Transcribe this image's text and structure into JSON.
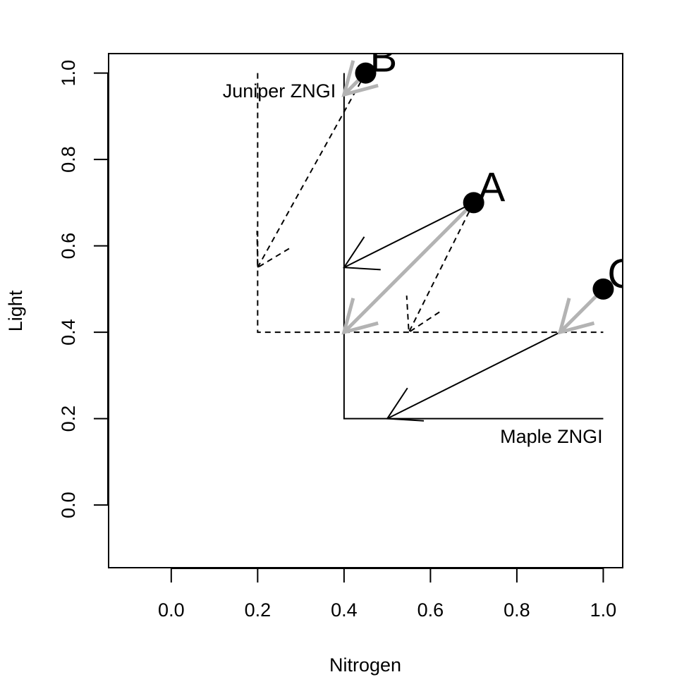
{
  "chart_data": {
    "type": "scatter",
    "xlabel": "Nitrogen",
    "ylabel": "Light",
    "xlim": [
      -0.145,
      1.045
    ],
    "ylim": [
      -0.145,
      1.045
    ],
    "grid": false,
    "x_ticks": [
      {
        "value": 0.0,
        "label": "0.0"
      },
      {
        "value": 0.2,
        "label": "0.2"
      },
      {
        "value": 0.4,
        "label": "0.4"
      },
      {
        "value": 0.6,
        "label": "0.6"
      },
      {
        "value": 0.8,
        "label": "0.8"
      },
      {
        "value": 1.0,
        "label": "1.0"
      }
    ],
    "y_ticks": [
      {
        "value": 0.0,
        "label": "0.0"
      },
      {
        "value": 0.2,
        "label": "0.2"
      },
      {
        "value": 0.4,
        "label": "0.4"
      },
      {
        "value": 0.6,
        "label": "0.6"
      },
      {
        "value": 0.8,
        "label": "0.8"
      },
      {
        "value": 1.0,
        "label": "1.0"
      }
    ],
    "zngi_lines": [
      {
        "name": "Juniper ZNGI",
        "style": "dashed",
        "points": [
          [
            0.2,
            1.0
          ],
          [
            0.2,
            0.4
          ],
          [
            1.0,
            0.4
          ]
        ]
      },
      {
        "name": "Maple ZNGI",
        "style": "solid",
        "points": [
          [
            0.4,
            1.0
          ],
          [
            0.4,
            0.2
          ],
          [
            1.0,
            0.2
          ]
        ]
      }
    ],
    "supply_points": [
      {
        "label": "A",
        "x": 0.7,
        "y": 0.7
      },
      {
        "label": "B",
        "x": 0.45,
        "y": 1.0
      },
      {
        "label": "C",
        "x": 1.0,
        "y": 0.5
      }
    ],
    "consumption_vectors": [
      {
        "from": "A",
        "style": "solid",
        "color": "#000000",
        "x1": 0.7,
        "y1": 0.7,
        "x2": 0.4,
        "y2": 0.55
      },
      {
        "from": "A",
        "style": "dashed",
        "color": "#000000",
        "x1": 0.7,
        "y1": 0.7,
        "x2": 0.55,
        "y2": 0.4
      },
      {
        "from": "A",
        "style": "thick",
        "color": "#b3b3b3",
        "x1": 0.7,
        "y1": 0.7,
        "x2": 0.4,
        "y2": 0.4
      },
      {
        "from": "B",
        "style": "dashed",
        "color": "#000000",
        "x1": 0.45,
        "y1": 1.0,
        "x2": 0.2,
        "y2": 0.55
      },
      {
        "from": "B",
        "style": "thick",
        "color": "#b3b3b3",
        "x1": 0.45,
        "y1": 1.0,
        "x2": 0.4,
        "y2": 0.95
      },
      {
        "from": "C",
        "style": "solid",
        "color": "#000000",
        "x1": 0.9,
        "y1": 0.4,
        "x2": 0.5,
        "y2": 0.2
      },
      {
        "from": "C",
        "style": "thick",
        "color": "#b3b3b3",
        "x1": 1.0,
        "y1": 0.5,
        "x2": 0.9,
        "y2": 0.4
      }
    ],
    "annotations": [
      {
        "text": "Juniper ZNGI",
        "x": 0.25,
        "y": 0.96
      },
      {
        "text": "Maple ZNGI",
        "x": 0.88,
        "y": 0.16
      }
    ]
  }
}
